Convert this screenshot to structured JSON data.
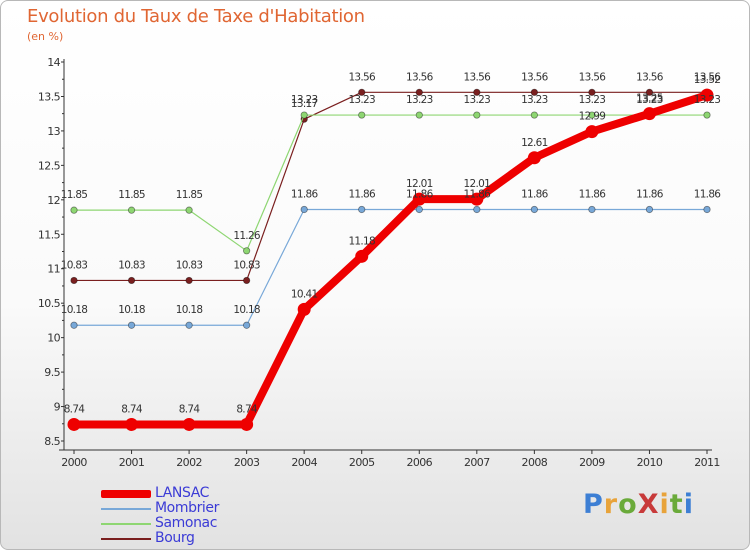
{
  "title": "Evolution du Taux de Taxe d'Habitation",
  "subtitle": "(en %)",
  "brand": {
    "text": "ProXiti",
    "letter_colors": [
      "#3d7fd4",
      "#e8a33a",
      "#6aaa3a",
      "#c83a3a",
      "#e8a33a",
      "#6aaa3a",
      "#3d7fd4"
    ]
  },
  "chart_data": {
    "type": "line",
    "title": "Evolution du Taux de Taxe d'Habitation",
    "subtitle": "(en %)",
    "xlabel": "",
    "ylabel": "",
    "x": [
      "2000",
      "2001",
      "2002",
      "2003",
      "2004",
      "2005",
      "2006",
      "2007",
      "2008",
      "2009",
      "2010",
      "2011"
    ],
    "ylim": [
      8.5,
      14
    ],
    "yticks": [
      "8.5",
      "9",
      "9.5",
      "10",
      "10.5",
      "11",
      "11.5",
      "12",
      "12.5",
      "13",
      "13.5",
      "14"
    ],
    "grid": false,
    "legend_position": "bottom-left",
    "series": [
      {
        "name": "Bourg",
        "color": "#7a1f1f",
        "values": [
          10.83,
          10.83,
          10.83,
          10.83,
          13.17,
          13.56,
          13.56,
          13.56,
          13.56,
          13.56,
          13.56,
          13.56
        ],
        "labels": [
          "10.83",
          "10.83",
          "10.83",
          "10.83",
          "13.17",
          "13.56",
          "13.56",
          "13.56",
          "13.56",
          "13.56",
          "13.56",
          "13.56"
        ]
      },
      {
        "name": "Samonac",
        "color": "#8ed672",
        "values": [
          11.85,
          11.85,
          11.85,
          11.26,
          13.23,
          13.23,
          13.23,
          13.23,
          13.23,
          13.23,
          13.23,
          13.23
        ],
        "labels": [
          "11.85",
          "11.85",
          "11.85",
          "11.26",
          "13.23",
          "13.23",
          "13.23",
          "13.23",
          "13.23",
          "13.23",
          "13.23",
          "13.23"
        ]
      },
      {
        "name": "Mombrier",
        "color": "#78a8d8",
        "values": [
          10.18,
          10.18,
          10.18,
          10.18,
          11.86,
          11.86,
          11.86,
          11.86,
          11.86,
          11.86,
          11.86,
          11.86
        ],
        "labels": [
          "10.18",
          "10.18",
          "10.18",
          "10.18",
          "11.86",
          "11.86",
          "11.86",
          "11.86",
          "11.86",
          "11.86",
          "11.86",
          "11.86"
        ]
      },
      {
        "name": "LANSAC",
        "color": "#ee0000",
        "values": [
          8.74,
          8.74,
          8.74,
          8.74,
          10.41,
          11.18,
          12.01,
          12.01,
          12.61,
          12.99,
          13.25,
          13.52
        ],
        "labels": [
          "8.74",
          "8.74",
          "8.74",
          "8.74",
          "10.41",
          "11.18",
          "12.01",
          "12.01",
          "12.61",
          "12.99",
          "13.25",
          "13.52"
        ]
      }
    ]
  },
  "legend": [
    {
      "label": "LANSAC",
      "color": "#ee0000"
    },
    {
      "label": "Mombrier",
      "color": "#78a8d8"
    },
    {
      "label": "Samonac",
      "color": "#8ed672"
    },
    {
      "label": "Bourg",
      "color": "#7a1f1f"
    }
  ]
}
